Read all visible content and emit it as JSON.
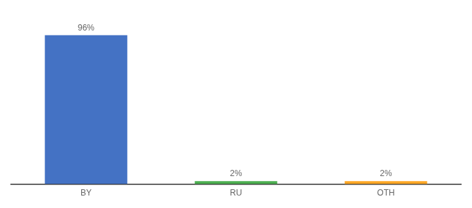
{
  "chart_data": {
    "type": "bar",
    "categories": [
      "BY",
      "RU",
      "OTH"
    ],
    "values": [
      96,
      2,
      2
    ],
    "value_labels": [
      "96%",
      "2%",
      "2%"
    ],
    "colors": [
      "#4472c4",
      "#4caf50",
      "#ffa726"
    ],
    "ylim": [
      0,
      108
    ],
    "grid": false,
    "data_labels": true,
    "tick_labels": "x"
  }
}
